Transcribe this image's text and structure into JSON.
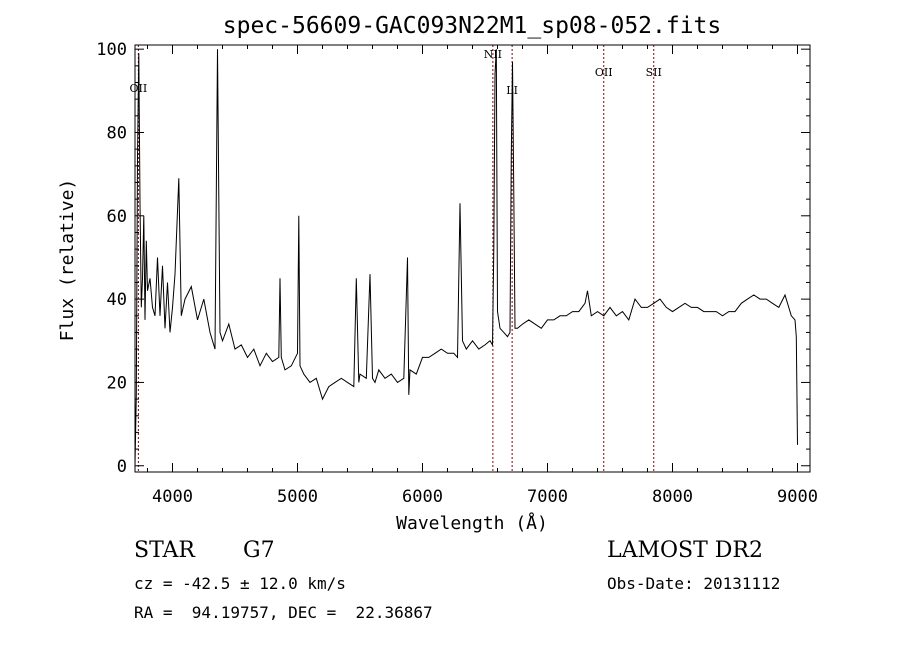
{
  "chart_data": {
    "type": "line",
    "title": "spec-56609-GAC093N22M1_sp08-052.fits",
    "xlabel": "Wavelength (Å)",
    "ylabel": "Flux (relative)",
    "xlim": [
      3700,
      9100
    ],
    "ylim": [
      -1.5,
      101
    ],
    "xticks": [
      4000,
      5000,
      6000,
      7000,
      8000,
      9000
    ],
    "yticks": [
      0,
      20,
      40,
      60,
      80,
      100
    ],
    "grid": false,
    "color": "#000000",
    "line_color": "#8b0000",
    "series": [
      {
        "x": [
          3700,
          3710,
          3720,
          3730,
          3740,
          3750,
          3760,
          3770,
          3780,
          3790,
          3800,
          3820,
          3840,
          3860,
          3880,
          3900,
          3920,
          3940,
          3960,
          3980,
          4000,
          4020,
          4050,
          4070,
          4100,
          4150,
          4200,
          4250,
          4300,
          4340,
          4360,
          4380,
          4400,
          4450,
          4500,
          4550,
          4600,
          4650,
          4700,
          4750,
          4800,
          4850,
          4860,
          4870,
          4900,
          4950,
          5000,
          5010,
          5020,
          5050,
          5100,
          5150,
          5200,
          5250,
          5300,
          5350,
          5400,
          5450,
          5470,
          5490,
          5500,
          5550,
          5580,
          5600,
          5620,
          5650,
          5700,
          5750,
          5800,
          5850,
          5880,
          5890,
          5900,
          5950,
          6000,
          6050,
          6100,
          6150,
          6200,
          6250,
          6280,
          6300,
          6320,
          6350,
          6400,
          6450,
          6500,
          6540,
          6560,
          6570,
          6580,
          6590,
          6600,
          6620,
          6650,
          6680,
          6700,
          6710,
          6720,
          6730,
          6740,
          6760,
          6800,
          6850,
          6900,
          6950,
          7000,
          7050,
          7100,
          7150,
          7200,
          7250,
          7300,
          7320,
          7350,
          7400,
          7450,
          7500,
          7550,
          7600,
          7650,
          7700,
          7750,
          7800,
          7850,
          7900,
          7950,
          8000,
          8050,
          8100,
          8150,
          8200,
          8250,
          8300,
          8350,
          8400,
          8450,
          8500,
          8550,
          8600,
          8650,
          8700,
          8750,
          8800,
          8850,
          8900,
          8950,
          8980,
          8990,
          9000
        ],
        "y": [
          0,
          17,
          74,
          99,
          63,
          38,
          45,
          60,
          35,
          54,
          42,
          45,
          38,
          36,
          50,
          36,
          48,
          33,
          44,
          32,
          38,
          46,
          69,
          36,
          40,
          43,
          35,
          40,
          32,
          28,
          100,
          32,
          30,
          34,
          28,
          29,
          26,
          28,
          24,
          27,
          25,
          26,
          45,
          26,
          23,
          24,
          27,
          60,
          24,
          22,
          20,
          21,
          16,
          19,
          20,
          21,
          20,
          19,
          45,
          20,
          22,
          21,
          46,
          21,
          20,
          23,
          21,
          22,
          20,
          21,
          50,
          17,
          23,
          22,
          26,
          26,
          27,
          28,
          27,
          27,
          26,
          63,
          30,
          28,
          30,
          28,
          29,
          30,
          29,
          52,
          94,
          100,
          37,
          33,
          32,
          31,
          32,
          75,
          97,
          65,
          33,
          33,
          34,
          35,
          34,
          33,
          35,
          35,
          36,
          36,
          37,
          37,
          39,
          42,
          36,
          37,
          36,
          38,
          36,
          37,
          35,
          40,
          38,
          38,
          39,
          40,
          38,
          37,
          38,
          39,
          38,
          38,
          37,
          37,
          37,
          36,
          37,
          37,
          39,
          40,
          41,
          40,
          40,
          39,
          38,
          41,
          36,
          35,
          31,
          5
        ]
      }
    ],
    "lines": [
      {
        "x": 3727,
        "label": "OII"
      },
      {
        "x": 6563,
        "label": "NII"
      },
      {
        "x": 6717,
        "label": "LI"
      },
      {
        "x": 7450,
        "label": "OII"
      },
      {
        "x": 7850,
        "label": "SII"
      }
    ]
  },
  "info": {
    "object_type": "STAR",
    "subclass": "G7",
    "survey": "LAMOST DR2",
    "cz": "cz = -42.5 ± 12.0 km/s",
    "obs_date": "Obs-Date: 20131112",
    "coords": "RA =  94.19757, DEC =  22.36867"
  }
}
